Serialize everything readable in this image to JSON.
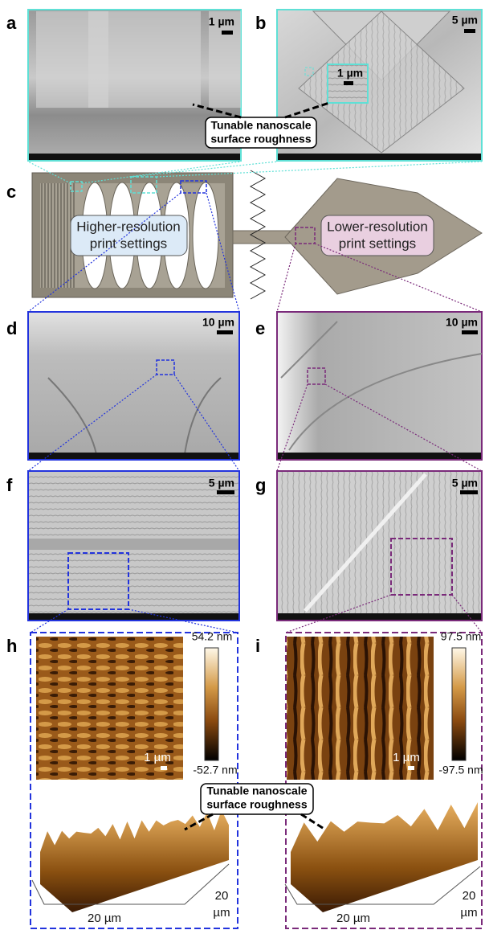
{
  "panels": {
    "a": {
      "label": "a",
      "scale_bar": "1 µm"
    },
    "b": {
      "label": "b",
      "scale_bar": "5 µm",
      "inset_scale_bar": "1 µm"
    },
    "c": {
      "label": "c",
      "left_box": [
        "Higher-resolution",
        "print settings"
      ],
      "right_box": [
        "Lower-resolution",
        "print settings"
      ]
    },
    "d": {
      "label": "d",
      "scale_bar": "10 µm"
    },
    "e": {
      "label": "e",
      "scale_bar": "10 µm"
    },
    "f": {
      "label": "f",
      "scale_bar": "5 µm"
    },
    "g": {
      "label": "g",
      "scale_bar": "5 µm"
    },
    "h": {
      "label": "h",
      "colorbar_max": "54.2 nm",
      "colorbar_min": "-52.7 nm",
      "scale_bar": "1 µm",
      "x_axis": "20 µm",
      "y_axis": [
        "20",
        "µm"
      ]
    },
    "i": {
      "label": "i",
      "colorbar_max": "97.5 nm",
      "colorbar_min": "-97.5 nm",
      "scale_bar": "1 µm",
      "x_axis": "20 µm",
      "y_axis": [
        "20",
        "µm"
      ]
    }
  },
  "callout_top": {
    "lines": [
      "Tunable nanoscale",
      "surface roughness"
    ]
  },
  "callout_bottom": {
    "lines": [
      "Tunable nanoscale",
      "surface roughness"
    ]
  }
}
